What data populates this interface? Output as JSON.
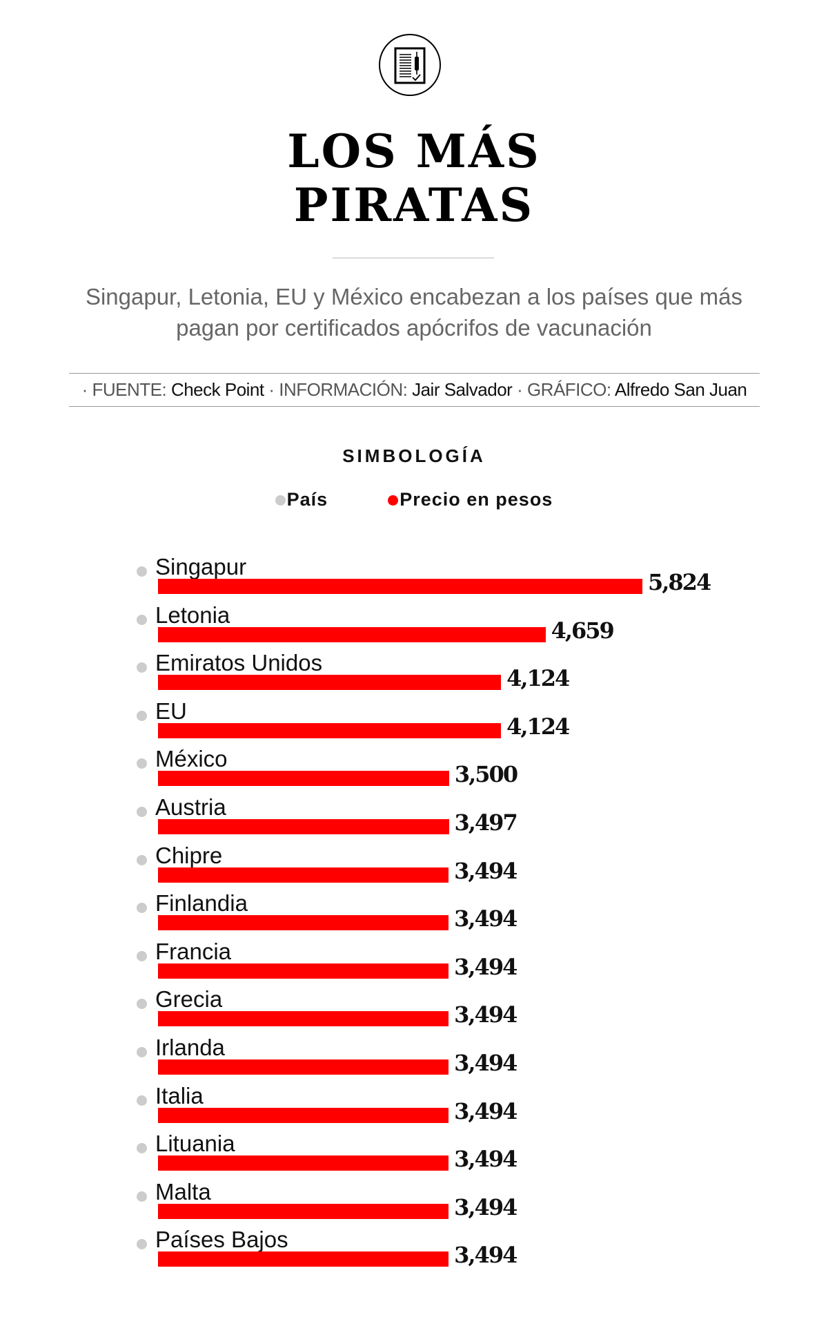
{
  "header": {
    "icon": "vaccination-certificate-icon",
    "title_line1": "LOS MÁS",
    "title_line2": "PIRATAS",
    "subtitle": "Singapur, Letonia, EU y México encabezan a los países que más pagan por certificados apócrifos de vacunación"
  },
  "source": {
    "fuente_label": "· FUENTE:",
    "fuente": "Check Point",
    "info_label": "· INFORMACIÓN:",
    "info": "Jair Salvador",
    "grafico_label": "· GRÁFICO:",
    "grafico": "Alfredo San Juan"
  },
  "legend": {
    "title": "SIMBOLOGÍA",
    "items": [
      {
        "label": "País",
        "color": "#cccccc"
      },
      {
        "label": "Precio en pesos",
        "color": "#ff0000"
      }
    ]
  },
  "chart_data": {
    "type": "bar",
    "orientation": "horizontal",
    "bar_color": "#ff0000",
    "categories": [
      "Singapur",
      "Letonia",
      "Emiratos Unidos",
      "EU",
      "México",
      "Austria",
      "Chipre",
      "Finlandia",
      "Francia",
      "Grecia",
      "Irlanda",
      "Italia",
      "Lituania",
      "Malta",
      "Países Bajos"
    ],
    "values": [
      5824,
      4659,
      4124,
      4124,
      3500,
      3497,
      3494,
      3494,
      3494,
      3494,
      3494,
      3494,
      3494,
      3494,
      3494
    ],
    "labels": [
      "5,824",
      "4,659",
      "4,124",
      "4,124",
      "3,500",
      "3,497",
      "3,494",
      "3,494",
      "3,494",
      "3,494",
      "3,494",
      "3,494",
      "3,494",
      "3,494",
      "3,494"
    ]
  }
}
